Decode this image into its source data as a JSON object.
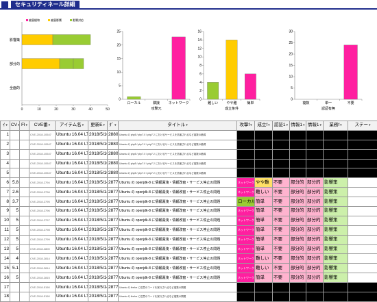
{
  "header": {
    "title": "セキュリティネール詳細"
  },
  "charts": {
    "hbar": {
      "legend": [
        "■被害緩和",
        "■被害影響",
        "■影響対応"
      ],
      "categories": [
        "影響策",
        "部分的",
        "全面的"
      ],
      "xticks": [
        "0",
        "10",
        "20",
        "30",
        "40",
        "50"
      ]
    },
    "attack": {
      "categories": [
        "ローカル",
        "隣接",
        "ネットワーク"
      ],
      "xlabel": "攻撃元",
      "yticks": [
        "0",
        "5",
        "10",
        "15",
        "20",
        "25"
      ]
    },
    "cond": {
      "categories": [
        "難しい",
        "やや難",
        "簡単"
      ],
      "xlabel": "成立条件",
      "yticks": [
        "0",
        "2",
        "4",
        "6",
        "8",
        "10",
        "12",
        "14",
        "16"
      ]
    },
    "auth": {
      "categories": [
        "複数",
        "単一",
        "不要"
      ],
      "xlabel": "認証有無",
      "yticks": [
        "0",
        "5",
        "10",
        "15",
        "20",
        "25",
        "30"
      ]
    }
  },
  "chart_data": [
    {
      "type": "bar",
      "orientation": "horizontal",
      "stacked": true,
      "categories": [
        "影響策",
        "部分的",
        "全面的"
      ],
      "series": [
        {
          "name": "■被害緩和",
          "values": [
            0,
            0,
            0
          ],
          "color": "#ff1fa0"
        },
        {
          "name": "■被害影響",
          "values": [
            18,
            22,
            0
          ],
          "color": "#ffcc00"
        },
        {
          "name": "■影響対応",
          "values": [
            0,
            8,
            0
          ],
          "color": "#99cc33"
        },
        {
          "values": [
            0,
            0,
            0
          ],
          "color": "#ffcc00"
        },
        {
          "values": [
            22,
            0,
            0
          ],
          "color": "#99cc33"
        },
        {
          "values": [
            0,
            6,
            0
          ],
          "color": "#99cc33"
        }
      ],
      "xlim": [
        0,
        50
      ]
    },
    {
      "type": "bar",
      "categories": [
        "ローカル",
        "隣接",
        "ネットワーク"
      ],
      "values": [
        1,
        0,
        23
      ],
      "colors": [
        "#99cc33",
        "#ffcc00",
        "#ff1fa0"
      ],
      "xlabel": "攻撃元",
      "ylim": [
        0,
        25
      ]
    },
    {
      "type": "bar",
      "categories": [
        "難しい",
        "やや難",
        "簡単"
      ],
      "values": [
        4,
        14,
        6
      ],
      "colors": [
        "#99cc33",
        "#ffcc00",
        "#ff1fa0"
      ],
      "xlabel": "成立条件",
      "ylim": [
        0,
        16
      ]
    },
    {
      "type": "bar",
      "categories": [
        "複数",
        "単一",
        "不要"
      ],
      "values": [
        0,
        0,
        24
      ],
      "colors": [
        "#99cc33",
        "#ffcc00",
        "#ff1fa0"
      ],
      "xlabel": "認証有無",
      "ylim": [
        0,
        30
      ]
    }
  ],
  "table": {
    "headers": [
      "ｲ",
      "CV",
      "Fl",
      "CVE番",
      "アイテム名",
      "更新E",
      "ﾀﾞ",
      "タイトル",
      "攻撃f",
      "成立f",
      "認証1",
      "情報1",
      "情報1",
      "業務f",
      "ステー"
    ],
    "rows": [
      [
        "1",
        "",
        "",
        "CVE-2018-10547",
        "Ubuntu 16.04 LTS",
        "2018/5/16",
        "28802",
        "Ubuntu の php5 / php7.0 / php7.2 におけるサービスを妨害されるなど複数の脆弱",
        "",
        "",
        "",
        "",
        "",
        "",
        ""
      ],
      [
        "2",
        "",
        "",
        "CVE-2018-10547",
        "Ubuntu 16.04 LTS",
        "2018/5/16",
        "28802",
        "Ubuntu の php5 / php7.0 / php7.2 におけるサービスを妨害されるなど複数の脆弱",
        "",
        "",
        "",
        "",
        "",
        "",
        ""
      ],
      [
        "3",
        "",
        "",
        "CVE-2018-10547",
        "Ubuntu 16.04 LTS",
        "2018/5/16",
        "28802",
        "Ubuntu の php5 / php7.0 / php7.2 におけるサービスを妨害されるなど複数の脆弱",
        "",
        "",
        "",
        "",
        "",
        "",
        ""
      ],
      [
        "4",
        "",
        "",
        "CVE-2018-10547",
        "Ubuntu 16.04 LTS",
        "2018/5/16",
        "28802",
        "Ubuntu の php5 / php7.0 / php7.2 におけるサービスを妨害されるなど複数の脆弱",
        "",
        "",
        "",
        "",
        "",
        "",
        ""
      ],
      [
        "5",
        "",
        "",
        "CVE-2018-10547",
        "Ubuntu 16.04 LTS",
        "2018/5/16",
        "28802",
        "Ubuntu の php5 / php7.0 / php7.2 におけるサービスを妨害されるなど複数の脆弱",
        "",
        "",
        "",
        "",
        "",
        "",
        ""
      ],
      [
        "6",
        "5.8",
        "",
        "CVE-2018-2794",
        "Ubuntu 16.04 LTS",
        "2018/5/14",
        "28774",
        "Ubuntu の openjdk-8 に情報漏洩・情報改竄・サービス停止の問題",
        "ネットワーク",
        "やや難",
        "不要",
        "部分的",
        "部分的",
        "影響策",
        ""
      ],
      [
        "7",
        "2.6",
        "",
        "CVE-2018-2796",
        "Ubuntu 16.04 LTS",
        "2018/5/14",
        "28774",
        "Ubuntu の openjdk-8 に情報漏洩・情報改竄・サービス停止の問題",
        "ネットワーク",
        "難しい",
        "不要",
        "部分的",
        "部分的",
        "影響策",
        ""
      ],
      [
        "8",
        "3.7",
        "",
        "CVE-2018-2795",
        "Ubuntu 16.04 LTS",
        "2018/5/14",
        "28774",
        "Ubuntu の openjdk-8 に情報漏洩・情報改竄・サービス停止の問題",
        "ローカル",
        "簡単",
        "不要",
        "部分的",
        "部分的",
        "影響策",
        ""
      ],
      [
        "9",
        "5",
        "",
        "CVE-2018-2796",
        "Ubuntu 16.04 LTS",
        "2018/5/14",
        "28774",
        "Ubuntu の openjdk-8 に情報漏洩・情報改竄・サービス停止の問題",
        "ネットワーク",
        "簡単",
        "不要",
        "部分的",
        "部分的",
        "影響策",
        ""
      ],
      [
        "10",
        "5",
        "",
        "CVE-2018-2797",
        "Ubuntu 16.04 LTS",
        "2018/5/14",
        "28774",
        "Ubuntu の openjdk-8 に情報漏洩・情報改竄・サービス停止の問題",
        "ネットワーク",
        "簡単",
        "不要",
        "部分的",
        "部分的",
        "影響策",
        ""
      ],
      [
        "11",
        "5",
        "",
        "CVE-2018-2798",
        "Ubuntu 16.04 LTS",
        "2018/5/14",
        "28774",
        "Ubuntu の openjdk-8 に情報漏洩・情報改竄・サービス停止の問題",
        "ネットワーク",
        "簡単",
        "不要",
        "部分的",
        "部分的",
        "影響策",
        ""
      ],
      [
        "12",
        "5",
        "",
        "CVE-2018-2799",
        "Ubuntu 16.04 LTS",
        "2018/5/14",
        "28774",
        "Ubuntu の openjdk-8 に情報漏洩・情報改竄・サービス停止の問題",
        "ネットワーク",
        "簡単",
        "不要",
        "部分的",
        "部分的",
        "影響策",
        ""
      ],
      [
        "13",
        "5",
        "",
        "CVE-2018-2800",
        "Ubuntu 16.04 LTS",
        "2018/5/14",
        "28774",
        "Ubuntu の openjdk-8 に情報漏洩・情報改竄・サービス停止の問題",
        "ネットワーク",
        "簡単",
        "不要",
        "部分的",
        "部分的",
        "影響策",
        ""
      ],
      [
        "14",
        "4",
        "",
        "CVE-2018-2814",
        "Ubuntu 16.04 LTS",
        "2018/5/14",
        "28774",
        "Ubuntu の openjdk-8 に情報漏洩・情報改竄・サービス停止の問題",
        "ネットワーク",
        "難しい",
        "不要",
        "部分的",
        "部分的",
        "影響策",
        ""
      ],
      [
        "15",
        "5.1",
        "",
        "CVE-2018-2814",
        "Ubuntu 16.04 LTS",
        "2018/5/14",
        "28774",
        "Ubuntu の openjdk-8 に情報漏洩・情報改竄・サービス停止の問題",
        "ネットワーク",
        "難しい",
        "不要",
        "部分的",
        "部分的",
        "影響策",
        ""
      ],
      [
        "16",
        "5",
        "",
        "CVE-2018-2815",
        "Ubuntu 16.04 LTS",
        "2018/5/14",
        "28774",
        "Ubuntu の openjdk-8 に情報漏洩・情報改竄・サービス停止の問題",
        "ネットワーク",
        "簡単",
        "不要",
        "部分的",
        "部分的",
        "影響策",
        ""
      ],
      [
        "17",
        "",
        "",
        "CVE-2018-5150",
        "Ubuntu 16.04 LTS",
        "2018/5/14",
        "28779",
        "Ubuntu の firefox に任意のコードを実行されるなど複数の問題",
        "",
        "",
        "",
        "",
        "",
        "",
        ""
      ],
      [
        "18",
        "",
        "",
        "CVE-2018-5150",
        "Ubuntu 16.04 LTS",
        "2018/5/14",
        "28779",
        "Ubuntu の firefox に任意のコードを実行されるなど複数の問題",
        "",
        "",
        "",
        "",
        "",
        "",
        ""
      ]
    ]
  }
}
